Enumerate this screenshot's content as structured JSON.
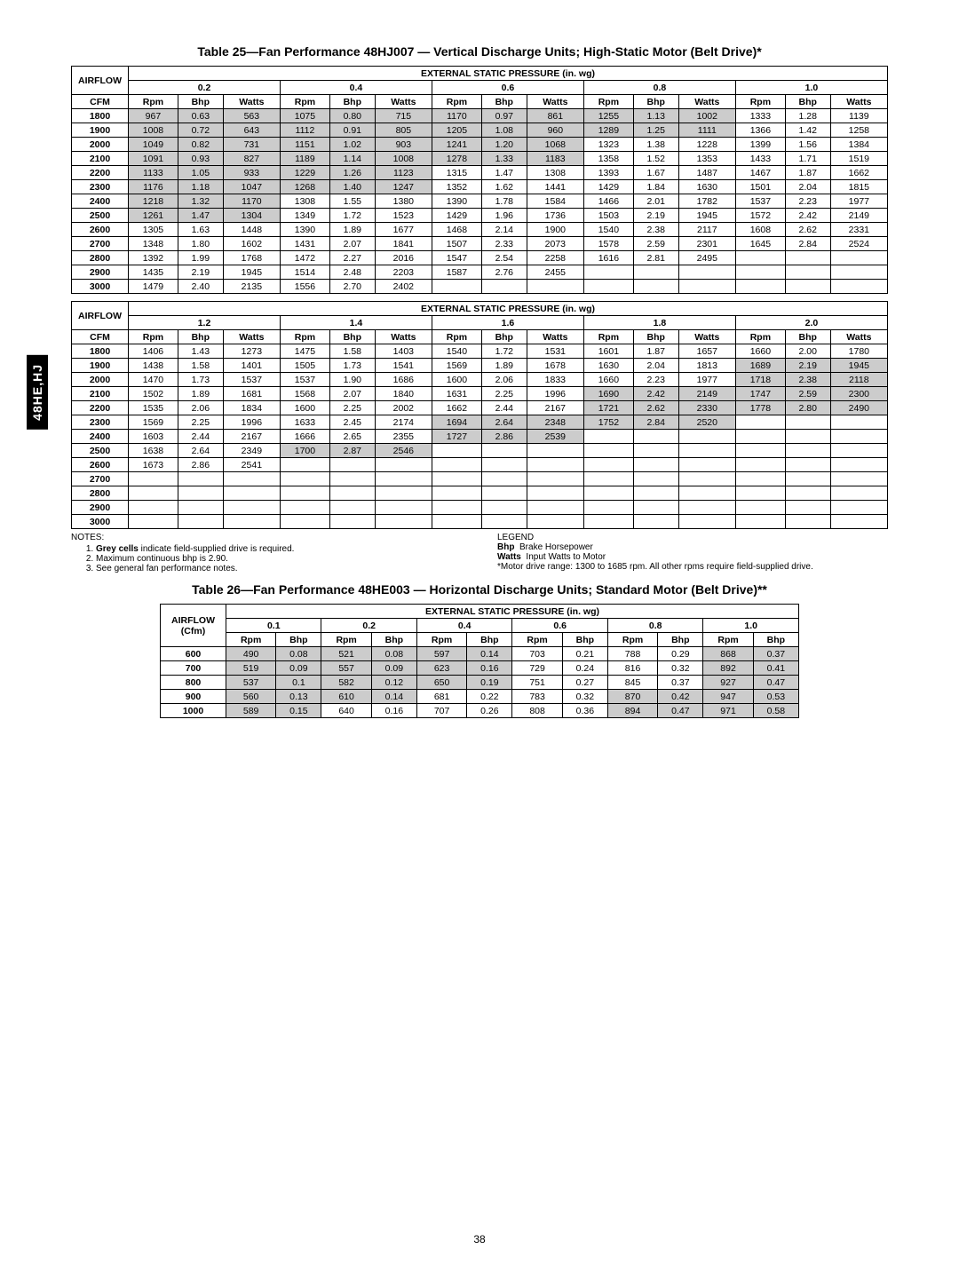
{
  "sideTab": "48HE,HJ",
  "pageNumber": "38",
  "table25": {
    "title": "Table 25—Fan Performance 48HJ007 — Vertical Discharge Units; High-Static Motor (Belt Drive)*",
    "espHeader": "EXTERNAL STATIC PRESSURE (in. wg)",
    "airflowHeader": "AIRFLOW",
    "cfmHeader": "CFM",
    "pressures": [
      "0.2",
      "0.4",
      "0.6",
      "0.8",
      "1.0"
    ],
    "subcols": [
      "Rpm",
      "Bhp",
      "Watts"
    ],
    "rowsA": [
      {
        "cfm": "1800",
        "c": [
          [
            "967",
            "0.63",
            "563",
            "g"
          ],
          [
            "1075",
            "0.80",
            "715",
            "g"
          ],
          [
            "1170",
            "0.97",
            "861",
            "g"
          ],
          [
            "1255",
            "1.13",
            "1002",
            "g"
          ],
          [
            "1333",
            "1.28",
            "1139",
            ""
          ]
        ]
      },
      {
        "cfm": "1900",
        "c": [
          [
            "1008",
            "0.72",
            "643",
            "g"
          ],
          [
            "1112",
            "0.91",
            "805",
            "g"
          ],
          [
            "1205",
            "1.08",
            "960",
            "g"
          ],
          [
            "1289",
            "1.25",
            "1111",
            "g"
          ],
          [
            "1366",
            "1.42",
            "1258",
            ""
          ]
        ]
      },
      {
        "cfm": "2000",
        "c": [
          [
            "1049",
            "0.82",
            "731",
            "g"
          ],
          [
            "1151",
            "1.02",
            "903",
            "g"
          ],
          [
            "1241",
            "1.20",
            "1068",
            "g"
          ],
          [
            "1323",
            "1.38",
            "1228",
            ""
          ],
          [
            "1399",
            "1.56",
            "1384",
            ""
          ]
        ]
      },
      {
        "cfm": "2100",
        "c": [
          [
            "1091",
            "0.93",
            "827",
            "g"
          ],
          [
            "1189",
            "1.14",
            "1008",
            "g"
          ],
          [
            "1278",
            "1.33",
            "1183",
            "g"
          ],
          [
            "1358",
            "1.52",
            "1353",
            ""
          ],
          [
            "1433",
            "1.71",
            "1519",
            ""
          ]
        ]
      },
      {
        "cfm": "2200",
        "c": [
          [
            "1133",
            "1.05",
            "933",
            "g"
          ],
          [
            "1229",
            "1.26",
            "1123",
            "g"
          ],
          [
            "1315",
            "1.47",
            "1308",
            ""
          ],
          [
            "1393",
            "1.67",
            "1487",
            ""
          ],
          [
            "1467",
            "1.87",
            "1662",
            ""
          ]
        ]
      },
      {
        "cfm": "2300",
        "c": [
          [
            "1176",
            "1.18",
            "1047",
            "g"
          ],
          [
            "1268",
            "1.40",
            "1247",
            "g"
          ],
          [
            "1352",
            "1.62",
            "1441",
            ""
          ],
          [
            "1429",
            "1.84",
            "1630",
            ""
          ],
          [
            "1501",
            "2.04",
            "1815",
            ""
          ]
        ]
      },
      {
        "cfm": "2400",
        "c": [
          [
            "1218",
            "1.32",
            "1170",
            "g"
          ],
          [
            "1308",
            "1.55",
            "1380",
            ""
          ],
          [
            "1390",
            "1.78",
            "1584",
            ""
          ],
          [
            "1466",
            "2.01",
            "1782",
            ""
          ],
          [
            "1537",
            "2.23",
            "1977",
            ""
          ]
        ]
      },
      {
        "cfm": "2500",
        "c": [
          [
            "1261",
            "1.47",
            "1304",
            "g"
          ],
          [
            "1349",
            "1.72",
            "1523",
            ""
          ],
          [
            "1429",
            "1.96",
            "1736",
            ""
          ],
          [
            "1503",
            "2.19",
            "1945",
            ""
          ],
          [
            "1572",
            "2.42",
            "2149",
            ""
          ]
        ]
      },
      {
        "cfm": "2600",
        "c": [
          [
            "1305",
            "1.63",
            "1448",
            ""
          ],
          [
            "1390",
            "1.89",
            "1677",
            ""
          ],
          [
            "1468",
            "2.14",
            "1900",
            ""
          ],
          [
            "1540",
            "2.38",
            "2117",
            ""
          ],
          [
            "1608",
            "2.62",
            "2331",
            ""
          ]
        ]
      },
      {
        "cfm": "2700",
        "c": [
          [
            "1348",
            "1.80",
            "1602",
            ""
          ],
          [
            "1431",
            "2.07",
            "1841",
            ""
          ],
          [
            "1507",
            "2.33",
            "2073",
            ""
          ],
          [
            "1578",
            "2.59",
            "2301",
            ""
          ],
          [
            "1645",
            "2.84",
            "2524",
            ""
          ]
        ]
      },
      {
        "cfm": "2800",
        "c": [
          [
            "1392",
            "1.99",
            "1768",
            ""
          ],
          [
            "1472",
            "2.27",
            "2016",
            ""
          ],
          [
            "1547",
            "2.54",
            "2258",
            ""
          ],
          [
            "1616",
            "2.81",
            "2495",
            ""
          ],
          [
            "",
            "",
            "",
            ""
          ]
        ]
      },
      {
        "cfm": "2900",
        "c": [
          [
            "1435",
            "2.19",
            "1945",
            ""
          ],
          [
            "1514",
            "2.48",
            "2203",
            ""
          ],
          [
            "1587",
            "2.76",
            "2455",
            ""
          ],
          [
            "",
            "",
            "",
            ""
          ],
          [
            "",
            "",
            "",
            ""
          ]
        ]
      },
      {
        "cfm": "3000",
        "c": [
          [
            "1479",
            "2.40",
            "2135",
            ""
          ],
          [
            "1556",
            "2.70",
            "2402",
            ""
          ],
          [
            "",
            "",
            "",
            ""
          ],
          [
            "",
            "",
            "",
            ""
          ],
          [
            "",
            "",
            "",
            ""
          ]
        ]
      }
    ],
    "pressuresB": [
      "1.2",
      "1.4",
      "1.6",
      "1.8",
      "2.0"
    ],
    "rowsB": [
      {
        "cfm": "1800",
        "c": [
          [
            "1406",
            "1.43",
            "1273",
            ""
          ],
          [
            "1475",
            "1.58",
            "1403",
            ""
          ],
          [
            "1540",
            "1.72",
            "1531",
            ""
          ],
          [
            "1601",
            "1.87",
            "1657",
            ""
          ],
          [
            "1660",
            "2.00",
            "1780",
            ""
          ]
        ]
      },
      {
        "cfm": "1900",
        "c": [
          [
            "1438",
            "1.58",
            "1401",
            ""
          ],
          [
            "1505",
            "1.73",
            "1541",
            ""
          ],
          [
            "1569",
            "1.89",
            "1678",
            ""
          ],
          [
            "1630",
            "2.04",
            "1813",
            ""
          ],
          [
            "1689",
            "2.19",
            "1945",
            "g"
          ]
        ]
      },
      {
        "cfm": "2000",
        "c": [
          [
            "1470",
            "1.73",
            "1537",
            ""
          ],
          [
            "1537",
            "1.90",
            "1686",
            ""
          ],
          [
            "1600",
            "2.06",
            "1833",
            ""
          ],
          [
            "1660",
            "2.23",
            "1977",
            ""
          ],
          [
            "1718",
            "2.38",
            "2118",
            "g"
          ]
        ]
      },
      {
        "cfm": "2100",
        "c": [
          [
            "1502",
            "1.89",
            "1681",
            ""
          ],
          [
            "1568",
            "2.07",
            "1840",
            ""
          ],
          [
            "1631",
            "2.25",
            "1996",
            ""
          ],
          [
            "1690",
            "2.42",
            "2149",
            "g"
          ],
          [
            "1747",
            "2.59",
            "2300",
            "g"
          ]
        ]
      },
      {
        "cfm": "2200",
        "c": [
          [
            "1535",
            "2.06",
            "1834",
            ""
          ],
          [
            "1600",
            "2.25",
            "2002",
            ""
          ],
          [
            "1662",
            "2.44",
            "2167",
            ""
          ],
          [
            "1721",
            "2.62",
            "2330",
            "g"
          ],
          [
            "1778",
            "2.80",
            "2490",
            "g"
          ]
        ]
      },
      {
        "cfm": "2300",
        "c": [
          [
            "1569",
            "2.25",
            "1996",
            ""
          ],
          [
            "1633",
            "2.45",
            "2174",
            ""
          ],
          [
            "1694",
            "2.64",
            "2348",
            "g"
          ],
          [
            "1752",
            "2.84",
            "2520",
            "g"
          ],
          [
            "",
            "",
            "",
            ""
          ]
        ]
      },
      {
        "cfm": "2400",
        "c": [
          [
            "1603",
            "2.44",
            "2167",
            ""
          ],
          [
            "1666",
            "2.65",
            "2355",
            ""
          ],
          [
            "1727",
            "2.86",
            "2539",
            "g"
          ],
          [
            "",
            "",
            "",
            ""
          ],
          [
            "",
            "",
            "",
            ""
          ]
        ]
      },
      {
        "cfm": "2500",
        "c": [
          [
            "1638",
            "2.64",
            "2349",
            ""
          ],
          [
            "1700",
            "2.87",
            "2546",
            "g"
          ],
          [
            "",
            "",
            "",
            ""
          ],
          [
            "",
            "",
            "",
            ""
          ],
          [
            "",
            "",
            "",
            ""
          ]
        ]
      },
      {
        "cfm": "2600",
        "c": [
          [
            "1673",
            "2.86",
            "2541",
            ""
          ],
          [
            "",
            "",
            "",
            ""
          ],
          [
            "",
            "",
            "",
            ""
          ],
          [
            "",
            "",
            "",
            ""
          ],
          [
            "",
            "",
            "",
            ""
          ]
        ]
      },
      {
        "cfm": "2700",
        "c": [
          [
            "",
            "",
            "",
            ""
          ],
          [
            "",
            "",
            "",
            ""
          ],
          [
            "",
            "",
            "",
            ""
          ],
          [
            "",
            "",
            "",
            ""
          ],
          [
            "",
            "",
            "",
            ""
          ]
        ]
      },
      {
        "cfm": "2800",
        "c": [
          [
            "",
            "",
            "",
            ""
          ],
          [
            "",
            "",
            "",
            ""
          ],
          [
            "",
            "",
            "",
            ""
          ],
          [
            "",
            "",
            "",
            ""
          ],
          [
            "",
            "",
            "",
            ""
          ]
        ]
      },
      {
        "cfm": "2900",
        "c": [
          [
            "",
            "",
            "",
            ""
          ],
          [
            "",
            "",
            "",
            ""
          ],
          [
            "",
            "",
            "",
            ""
          ],
          [
            "",
            "",
            "",
            ""
          ],
          [
            "",
            "",
            "",
            ""
          ]
        ]
      },
      {
        "cfm": "3000",
        "c": [
          [
            "",
            "",
            "",
            ""
          ],
          [
            "",
            "",
            "",
            ""
          ],
          [
            "",
            "",
            "",
            ""
          ],
          [
            "",
            "",
            "",
            ""
          ],
          [
            "",
            "",
            "",
            ""
          ]
        ]
      }
    ]
  },
  "notes": {
    "heading": "NOTES:",
    "n1a": "Grey cells",
    "n1b": " indicate field-supplied drive is required.",
    "n2": "Maximum continuous bhp is 2.90.",
    "n3": "See general fan performance notes.",
    "legendHeading": "LEGEND",
    "bhpLabel": "Bhp",
    "bhpText": "Brake Horsepower",
    "wattsLabel": "Watts",
    "wattsText": "Input Watts to Motor",
    "motorRange": "*Motor drive range: 1300 to 1685 rpm. All other rpms require field-supplied drive."
  },
  "table26": {
    "title": "Table 26—Fan Performance 48HE003 — Horizontal Discharge Units; Standard Motor (Belt Drive)**",
    "espHeader": "EXTERNAL STATIC PRESSURE (in. wg)",
    "airflowHeader": "AIRFLOW (Cfm)",
    "pressures": [
      "0.1",
      "0.2",
      "0.4",
      "0.6",
      "0.8",
      "1.0"
    ],
    "subcols": [
      "Rpm",
      "Bhp"
    ],
    "rows": [
      {
        "cfm": "600",
        "c": [
          [
            "490",
            "0.08",
            "g"
          ],
          [
            "521",
            "0.08",
            "g"
          ],
          [
            "597",
            "0.14",
            "g"
          ],
          [
            "703",
            "0.21",
            ""
          ],
          [
            "788",
            "0.29",
            ""
          ],
          [
            "868",
            "0.37",
            "g"
          ]
        ]
      },
      {
        "cfm": "700",
        "c": [
          [
            "519",
            "0.09",
            "g"
          ],
          [
            "557",
            "0.09",
            "g"
          ],
          [
            "623",
            "0.16",
            "g"
          ],
          [
            "729",
            "0.24",
            ""
          ],
          [
            "816",
            "0.32",
            ""
          ],
          [
            "892",
            "0.41",
            "g"
          ]
        ]
      },
      {
        "cfm": "800",
        "c": [
          [
            "537",
            "0.1",
            "g"
          ],
          [
            "582",
            "0.12",
            "g"
          ],
          [
            "650",
            "0.19",
            "g"
          ],
          [
            "751",
            "0.27",
            ""
          ],
          [
            "845",
            "0.37",
            ""
          ],
          [
            "927",
            "0.47",
            "g"
          ]
        ]
      },
      {
        "cfm": "900",
        "c": [
          [
            "560",
            "0.13",
            "g"
          ],
          [
            "610",
            "0.14",
            "g"
          ],
          [
            "681",
            "0.22",
            ""
          ],
          [
            "783",
            "0.32",
            ""
          ],
          [
            "870",
            "0.42",
            "g"
          ],
          [
            "947",
            "0.53",
            "g"
          ]
        ]
      },
      {
        "cfm": "1000",
        "c": [
          [
            "589",
            "0.15",
            "g"
          ],
          [
            "640",
            "0.16",
            ""
          ],
          [
            "707",
            "0.26",
            ""
          ],
          [
            "808",
            "0.36",
            ""
          ],
          [
            "894",
            "0.47",
            "g"
          ],
          [
            "971",
            "0.58",
            "g"
          ]
        ]
      }
    ]
  }
}
